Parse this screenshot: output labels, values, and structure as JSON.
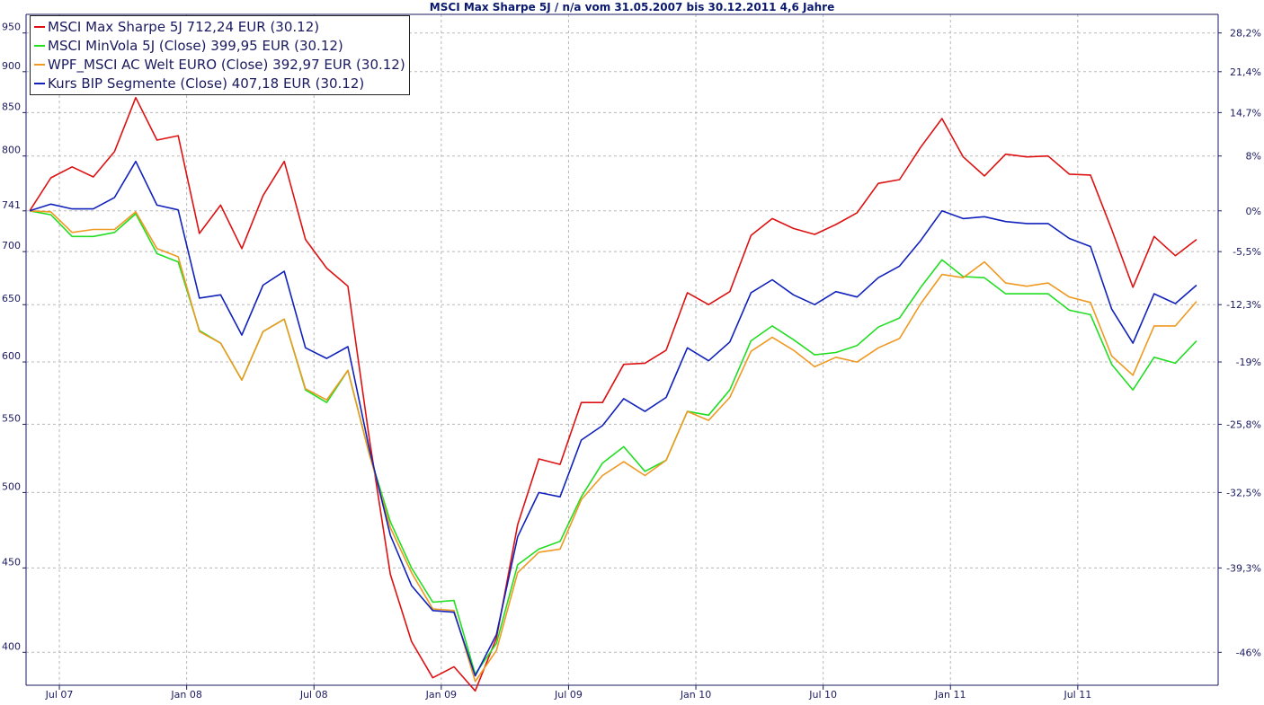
{
  "chart_data": {
    "type": "line",
    "title": "MSCI Max Sharpe 5J / n/a vom 31.05.2007 bis 30.12.2011 4,6 Jahre",
    "x_ticks": [
      "Jul 07",
      "Jan 08",
      "Jul 08",
      "Jan 09",
      "Jul 09",
      "Jan 10",
      "Jul 10",
      "Jan 11",
      "Jul 11"
    ],
    "y_scale": "log",
    "ylim": [
      382,
      975
    ],
    "left_axis_ticks": [
      {
        "value": 400,
        "label": "400"
      },
      {
        "value": 450,
        "label": "450"
      },
      {
        "value": 500,
        "label": "500"
      },
      {
        "value": 550,
        "label": "550"
      },
      {
        "value": 600,
        "label": "600"
      },
      {
        "value": 650,
        "label": "650"
      },
      {
        "value": 700,
        "label": "700"
      },
      {
        "value": 741,
        "label": "741"
      },
      {
        "value": 800,
        "label": "800"
      },
      {
        "value": 850,
        "label": "850"
      },
      {
        "value": 900,
        "label": "900"
      },
      {
        "value": 950,
        "label": "950"
      }
    ],
    "right_axis_ticks": [
      {
        "value": 950,
        "label": "28,2%"
      },
      {
        "value": 900,
        "label": "21,4%"
      },
      {
        "value": 850,
        "label": "14,7%"
      },
      {
        "value": 800,
        "label": "8%"
      },
      {
        "value": 741,
        "label": "0%"
      },
      {
        "value": 700,
        "label": "-5,5%"
      },
      {
        "value": 650,
        "label": "-12,3%"
      },
      {
        "value": 600,
        "label": "-19%"
      },
      {
        "value": 550,
        "label": "-25,8%"
      },
      {
        "value": 500,
        "label": "-32,5%"
      },
      {
        "value": 450,
        "label": "-39,3%"
      },
      {
        "value": 400,
        "label": "-46%"
      }
    ],
    "grid": true,
    "legend_position": "top-left",
    "series": [
      {
        "name": "MSCI Max Sharpe 5J 712,24 EUR (30.12)",
        "color": "#dd1111",
        "values": [
          741,
          776,
          788,
          777,
          805,
          868,
          818,
          823,
          718,
          747,
          703,
          757,
          794,
          712,
          684,
          667,
          540,
          446,
          406,
          386,
          392,
          379,
          408,
          478,
          524,
          520,
          567,
          567,
          598,
          599,
          610,
          661,
          650,
          662,
          716,
          733,
          723,
          717,
          727,
          739,
          770,
          774,
          810,
          843,
          799,
          778,
          802,
          799,
          800,
          780,
          779,
          722,
          666,
          715,
          696,
          712
        ]
      },
      {
        "name": "MSCI MinVola 5J (Close) 399,95 EUR (30.12)",
        "color": "#22dd22",
        "values": [
          741,
          737,
          715,
          715,
          719,
          738,
          698,
          690,
          627,
          616,
          585,
          626,
          637,
          577,
          567,
          593,
          528,
          480,
          450,
          429,
          430,
          388,
          405,
          452,
          462,
          467,
          497,
          521,
          533,
          515,
          523,
          560,
          557,
          577,
          618,
          631,
          619,
          606,
          608,
          614,
          630,
          638,
          666,
          692,
          676,
          675,
          660,
          660,
          660,
          645,
          641,
          598,
          577,
          604,
          599,
          618
        ]
      },
      {
        "name": "WPF_MSCI AC Welt EURO (Close) 392,97 EUR (30.12)",
        "color": "#ee9922",
        "values": [
          741,
          740,
          719,
          722,
          722,
          740,
          703,
          695,
          626,
          616,
          585,
          626,
          637,
          578,
          569,
          593,
          528,
          476,
          447,
          425,
          424,
          384,
          401,
          447,
          460,
          462,
          495,
          512,
          522,
          512,
          523,
          560,
          553,
          571,
          609,
          621,
          610,
          596,
          604,
          600,
          612,
          620,
          651,
          678,
          675,
          690,
          670,
          667,
          670,
          657,
          652,
          605,
          589,
          631,
          631,
          653
        ]
      },
      {
        "name": "Kurs BIP Segmente (Close) 407,18 EUR (30.12)",
        "color": "#1122bb",
        "values": [
          741,
          748,
          743,
          743,
          755,
          794,
          747,
          742,
          656,
          659,
          623,
          668,
          681,
          612,
          603,
          613,
          532,
          471,
          439,
          424,
          423,
          387,
          410,
          470,
          500,
          497,
          538,
          549,
          570,
          560,
          571,
          612,
          601,
          617,
          661,
          673,
          659,
          650,
          662,
          657,
          675,
          686,
          711,
          741,
          733,
          735,
          730,
          728,
          728,
          713,
          705,
          646,
          616,
          660,
          651,
          668
        ]
      }
    ]
  }
}
